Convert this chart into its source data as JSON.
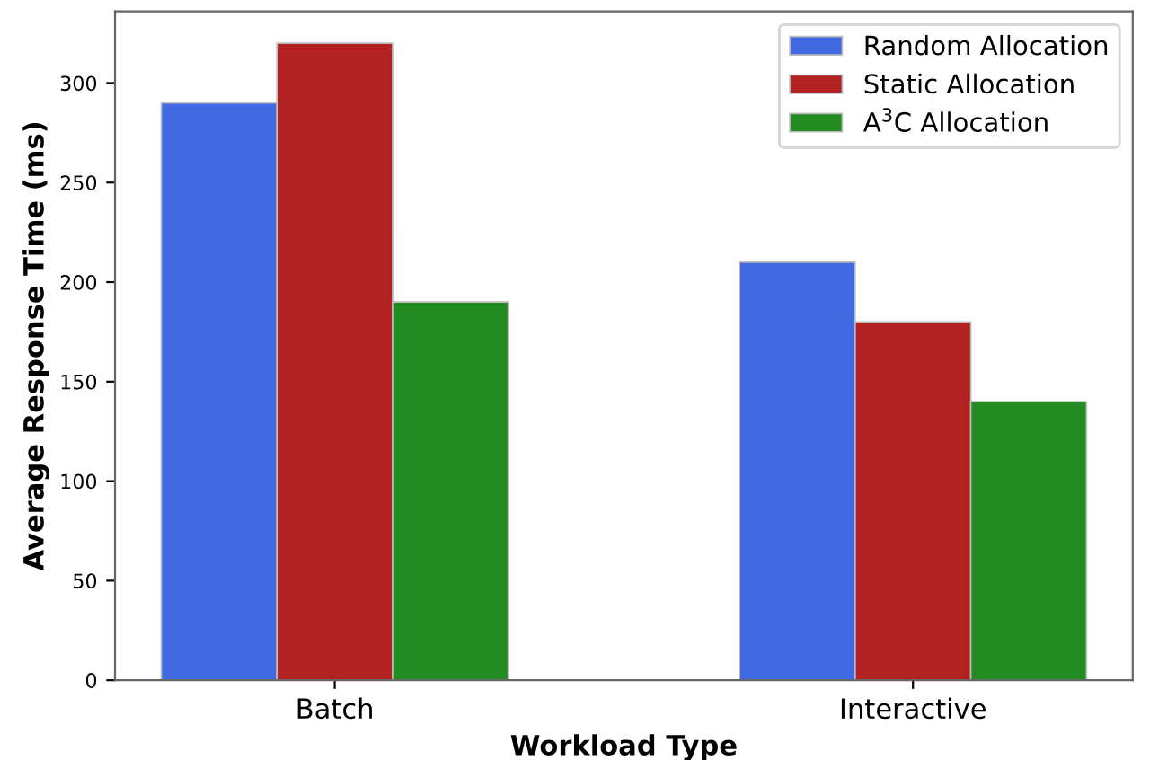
{
  "chart_data": {
    "type": "bar",
    "xlabel": "Workload Type",
    "ylabel": "Average Response Time (ms)",
    "categories": [
      "Batch",
      "Interactive"
    ],
    "series": [
      {
        "name": "Random Allocation",
        "color": "#4169e1",
        "values": [
          290,
          210
        ]
      },
      {
        "name": "Static Allocation",
        "color": "#b22222",
        "values": [
          320,
          180
        ]
      },
      {
        "name": "A$^{3}$C Allocation",
        "color": "#228b22",
        "values": [
          190,
          140
        ]
      }
    ],
    "ylim": [
      0,
      336
    ],
    "yticks": [
      0,
      50,
      100,
      150,
      200,
      250,
      300
    ],
    "grid": false,
    "legend": "top right"
  }
}
